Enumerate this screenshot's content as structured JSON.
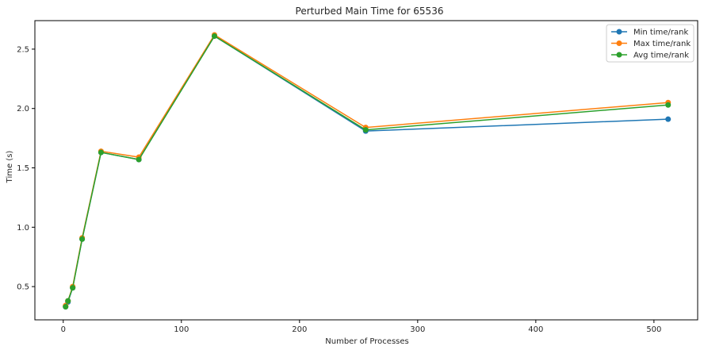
{
  "chart_data": {
    "type": "line",
    "title": "Perturbed Main Time for 65536",
    "xlabel": "Number of Processes",
    "ylabel": "Time (s)",
    "xlim": [
      -24,
      537
    ],
    "ylim": [
      0.22,
      2.74
    ],
    "xticks": [
      0,
      100,
      200,
      300,
      400,
      500
    ],
    "yticks": [
      0.5,
      1.0,
      1.5,
      2.0,
      2.5
    ],
    "xtick_labels": [
      "0",
      "100",
      "200",
      "300",
      "400",
      "500"
    ],
    "ytick_labels": [
      "0.5",
      "1.0",
      "1.5",
      "2.0",
      "2.5"
    ],
    "legend_position": "top-right",
    "x": [
      2,
      4,
      8,
      16,
      32,
      64,
      128,
      256,
      512
    ],
    "series": [
      {
        "name": "Min time/rank",
        "color": "#1f77b4",
        "values": [
          0.33,
          0.37,
          0.49,
          0.9,
          1.63,
          1.57,
          2.61,
          1.81,
          1.91
        ]
      },
      {
        "name": "Max time/rank",
        "color": "#ff7f0e",
        "values": [
          0.34,
          0.38,
          0.5,
          0.91,
          1.64,
          1.59,
          2.62,
          1.84,
          2.05
        ]
      },
      {
        "name": "Avg time/rank",
        "color": "#2ca02c",
        "values": [
          0.33,
          0.38,
          0.49,
          0.9,
          1.63,
          1.57,
          2.61,
          1.82,
          2.03
        ]
      }
    ]
  }
}
